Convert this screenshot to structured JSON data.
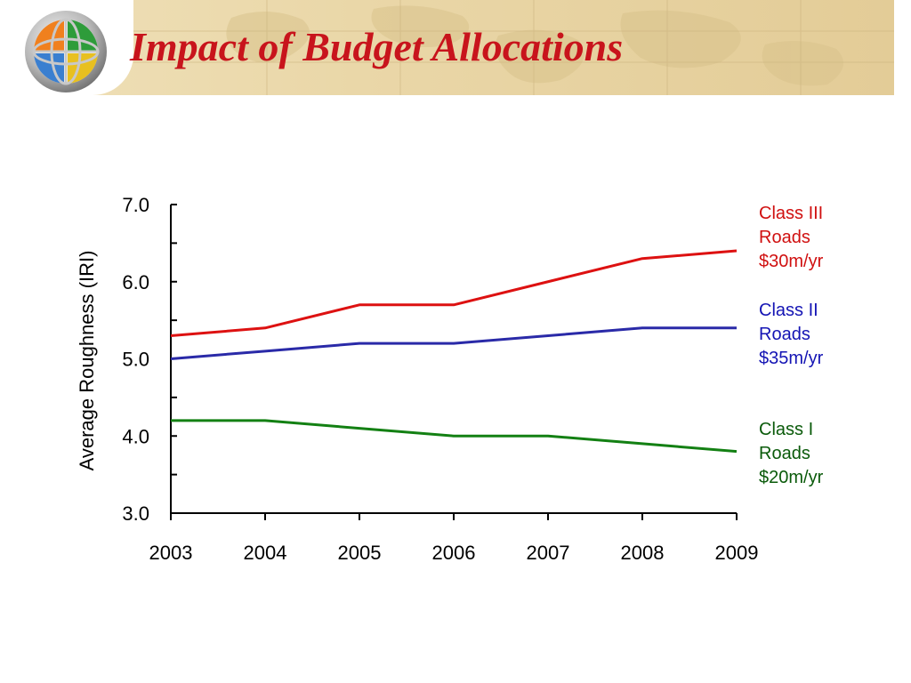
{
  "header": {
    "title": "Impact of Budget Allocations",
    "title_color": "#c8141c",
    "logo_icon": "globe-logo-icon"
  },
  "chart_data": {
    "type": "line",
    "x": [
      2003,
      2004,
      2005,
      2006,
      2007,
      2008,
      2009
    ],
    "xticks": [
      "2003",
      "2004",
      "2005",
      "2006",
      "2007",
      "2008",
      "2009"
    ],
    "yticks": [
      "3.0",
      "4.0",
      "5.0",
      "6.0",
      "7.0"
    ],
    "ylim": [
      3.0,
      7.0
    ],
    "ylabel": "Average Roughness (IRI)",
    "xlabel": "",
    "grid": false,
    "series": [
      {
        "label_lines": [
          "Class III",
          "Roads",
          "$30m/yr"
        ],
        "color": "#dd1111",
        "label_color": "#d01010",
        "values": [
          5.3,
          5.4,
          5.7,
          5.7,
          6.0,
          6.3,
          6.4
        ]
      },
      {
        "label_lines": [
          "Class II",
          "Roads",
          "$35m/yr"
        ],
        "color": "#2a2aa8",
        "label_color": "#1414b4",
        "values": [
          5.0,
          5.1,
          5.2,
          5.2,
          5.3,
          5.4,
          5.4
        ]
      },
      {
        "label_lines": [
          "Class I",
          "Roads",
          "$20m/yr"
        ],
        "color": "#138013",
        "label_color": "#0a5a0a",
        "values": [
          4.2,
          4.2,
          4.1,
          4.0,
          4.0,
          3.9,
          3.8
        ]
      }
    ]
  }
}
